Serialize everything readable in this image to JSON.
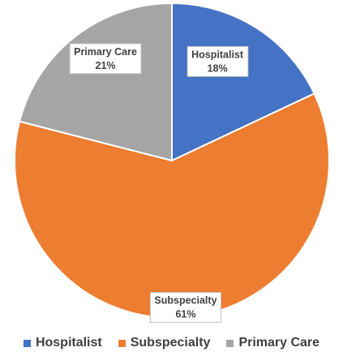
{
  "chart_data": {
    "type": "pie",
    "title": "",
    "categories": [
      "Hospitalist",
      "Subspecialty",
      "Primary Care"
    ],
    "values": [
      18,
      61,
      21
    ],
    "value_labels": [
      "18%",
      "61%",
      "21%"
    ],
    "colors": [
      "#4472C4",
      "#ED7D31",
      "#A5A5A5"
    ],
    "start_angle_deg": 0,
    "direction": "clockwise",
    "data_labels": "callout-boxes",
    "legend": "bottom"
  }
}
